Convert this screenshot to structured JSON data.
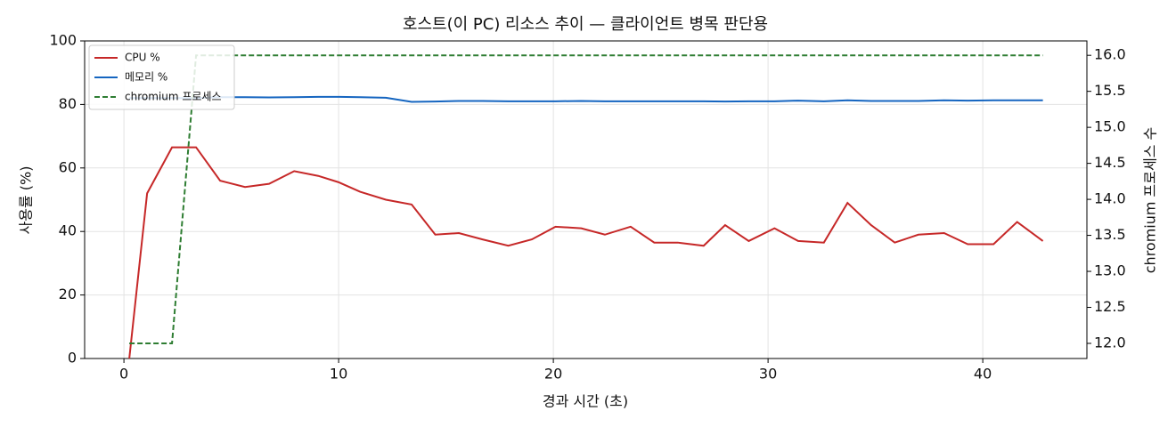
{
  "chart_data": {
    "type": "line",
    "title": "호스트(이 PC) 리소스 추이 — 클라이언트 병목 판단용",
    "x_label": "경과 시간 (초)",
    "y_label": "사용률 (%)",
    "y2_label": "chromium 프로세스 수",
    "x": [
      0.25,
      1.08,
      2.24,
      3.36,
      4.48,
      5.64,
      6.76,
      7.93,
      9.05,
      10.0,
      11.0,
      12.2,
      13.4,
      14.5,
      15.6,
      16.7,
      17.9,
      19.0,
      20.1,
      21.3,
      22.4,
      23.6,
      24.7,
      25.8,
      27.0,
      28.0,
      29.1,
      30.3,
      31.4,
      32.6,
      33.7,
      34.8,
      35.9,
      37.0,
      38.2,
      39.3,
      40.5,
      41.6,
      42.8
    ],
    "series": [
      {
        "name": "CPU %",
        "color": "#c62828",
        "linestyle": "solid",
        "values": [
          0,
          52,
          66.5,
          66.5,
          56,
          54,
          55,
          59,
          57.5,
          55.5,
          52.5,
          50,
          48.5,
          39,
          39.5,
          37.5,
          35.5,
          37.5,
          41.5,
          41,
          39,
          41.5,
          36.5,
          36.5,
          35.5,
          42,
          37,
          41,
          37,
          36.5,
          49,
          42,
          36.5,
          39,
          39.5,
          36,
          36,
          43,
          37
        ]
      },
      {
        "name": "메모리 %",
        "color": "#1565c0",
        "linestyle": "solid",
        "values": [
          82,
          82,
          82,
          82,
          82.3,
          82.3,
          82.2,
          82.3,
          82.4,
          82.4,
          82.3,
          82.1,
          80.8,
          80.9,
          81.1,
          81.1,
          81.0,
          81.0,
          81.0,
          81.1,
          81.0,
          81.0,
          81.0,
          81.0,
          81.0,
          80.9,
          81.0,
          81.0,
          81.2,
          81.0,
          81.3,
          81.1,
          81.1,
          81.1,
          81.3,
          81.2,
          81.3,
          81.3,
          81.3
        ]
      },
      {
        "name": "chromium 프로세스",
        "color": "#2e7d32",
        "linestyle": "dashed",
        "axis": "y2",
        "values": [
          12,
          12,
          12,
          16,
          16,
          16,
          16,
          16,
          16,
          16,
          16,
          16,
          16,
          16,
          16,
          16,
          16,
          16,
          16,
          16,
          16,
          16,
          16,
          16,
          16,
          16,
          16,
          16,
          16,
          16,
          16,
          16,
          16,
          16,
          16,
          16,
          16,
          16,
          16
        ]
      }
    ],
    "xlim": [
      -1.83,
      44.85
    ],
    "xticks": [
      0,
      10,
      20,
      30,
      40
    ],
    "ylim": [
      0,
      100
    ],
    "yticks": [
      0,
      20,
      40,
      60,
      80,
      100
    ],
    "y2lim": [
      11.79,
      16.2
    ],
    "y2ticks": [
      {
        "value": 12,
        "label": "12.0"
      },
      {
        "value": 12.5,
        "label": "12.5"
      },
      {
        "value": 13,
        "label": "13.0"
      },
      {
        "value": 13.5,
        "label": "13.5"
      },
      {
        "value": 14,
        "label": "14.0"
      },
      {
        "value": 14.5,
        "label": "14.5"
      },
      {
        "value": 15,
        "label": "15.0"
      },
      {
        "value": 15.5,
        "label": "15.5"
      },
      {
        "value": 16,
        "label": "16.0"
      }
    ],
    "grid": true,
    "legend": "upper-left"
  }
}
